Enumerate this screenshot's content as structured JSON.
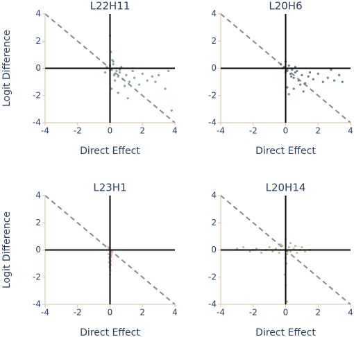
{
  "chart_data": [
    {
      "type": "scatter",
      "title": "L22H11",
      "xlabel": "Direct Effect",
      "ylabel": "Logit Difference",
      "color": "#6b9a80",
      "xlim": [
        -4,
        4
      ],
      "ylim": [
        -4,
        4
      ],
      "xticks": [
        -4,
        -2,
        0,
        2,
        4
      ],
      "yticks": [
        -4,
        -2,
        0,
        2,
        4
      ],
      "x": [
        0,
        0.1,
        0.2,
        0.3,
        0.4,
        0.5,
        0.6,
        0.8,
        1.0,
        1.2,
        1.5,
        1.8,
        2.0,
        2.3,
        2.6,
        3.0,
        3.4,
        3.8,
        0.0,
        0.05,
        0.1,
        0.2,
        0.3,
        0.5,
        0.7,
        0.9,
        1.1,
        1.4,
        0.15,
        0.25,
        -0.2,
        -0.3,
        0.4,
        0.6,
        2.8,
        3.6
      ],
      "y": [
        0.2,
        -0.1,
        0.3,
        -0.4,
        -0.2,
        -0.6,
        -0.3,
        -0.8,
        -0.5,
        -1.0,
        -0.7,
        -1.2,
        -0.4,
        -0.9,
        -0.6,
        -0.5,
        -1.5,
        -3.1,
        2.4,
        1.2,
        -1.5,
        0.5,
        -0.9,
        -1.8,
        0.1,
        -1.3,
        -2.2,
        -0.2,
        0.6,
        -0.5,
        0.1,
        -0.3,
        0.0,
        -0.1,
        -1.0,
        -0.2
      ]
    },
    {
      "type": "scatter",
      "title": "L20H6",
      "xlabel": "Direct Effect",
      "color": "#4d6a80",
      "xlim": [
        -4,
        4
      ],
      "ylim": [
        -4,
        4
      ],
      "xticks": [
        -4,
        -2,
        0,
        2,
        4
      ],
      "yticks": [
        -4,
        -2,
        0,
        2,
        4
      ],
      "x": [
        -0.3,
        -0.1,
        0.0,
        0.1,
        0.2,
        0.3,
        0.4,
        0.5,
        0.6,
        0.8,
        1.0,
        1.2,
        1.4,
        1.7,
        2.0,
        2.3,
        2.6,
        3.0,
        3.3,
        0.1,
        0.2,
        0.35,
        0.5,
        0.7,
        0.9,
        1.1,
        0.0,
        -0.2,
        0.6,
        1.5,
        2.8,
        3.5
      ],
      "y": [
        0.3,
        0.1,
        0.5,
        -0.2,
        0.2,
        -0.4,
        -0.1,
        -0.7,
        -0.3,
        -0.9,
        -0.5,
        -1.1,
        -0.6,
        -0.8,
        -0.4,
        -1.0,
        -0.7,
        -0.9,
        -0.5,
        -1.4,
        -1.9,
        -0.6,
        -1.5,
        -0.2,
        -1.2,
        -1.7,
        -0.3,
        0.0,
        0.1,
        -0.3,
        -0.1,
        -1.0
      ]
    },
    {
      "type": "scatter",
      "title": "L23H1",
      "xlabel": "Direct Effect",
      "ylabel": "Logit Difference",
      "color": "#d4a0b0",
      "xlim": [
        -4,
        4
      ],
      "ylim": [
        -4,
        4
      ],
      "xticks": [
        -4,
        -2,
        0,
        2,
        4
      ],
      "yticks": [
        -4,
        -2,
        0,
        2,
        4
      ],
      "x": [
        -0.1,
        -0.05,
        0.0,
        0.05,
        0.1,
        -0.08,
        0.02,
        0.06,
        -0.03,
        0.0,
        0.04,
        -0.06,
        0.01,
        0.03,
        -0.02,
        0.0,
        0.08,
        -0.04,
        0.02,
        0.0
      ],
      "y": [
        0.2,
        0.1,
        0.0,
        -0.1,
        -0.2,
        -0.3,
        -0.4,
        -0.5,
        -0.6,
        -0.7,
        -0.8,
        -0.9,
        -1.0,
        -1.1,
        -1.2,
        -1.3,
        -0.35,
        -0.55,
        -1.5,
        -1.8
      ]
    },
    {
      "type": "scatter",
      "title": "L20H14",
      "xlabel": "Direct Effect",
      "color": "#a8b880",
      "xlim": [
        -4,
        4
      ],
      "ylim": [
        -4,
        4
      ],
      "xticks": [
        -4,
        -2,
        0,
        2,
        4
      ],
      "yticks": [
        -4,
        -2,
        0,
        2,
        4
      ],
      "x": [
        -3.0,
        -2.6,
        -2.2,
        -1.8,
        -1.5,
        -1.2,
        -1.0,
        -0.8,
        -0.6,
        -0.4,
        -0.2,
        0.0,
        0.1,
        0.2,
        0.3,
        0.5,
        0.7,
        0.9,
        1.2,
        1.5,
        0.0,
        0.05,
        -0.05,
        0.0,
        0.1,
        0.3,
        -0.3,
        0.0,
        0.4,
        0.6,
        -2.0,
        1.0
      ],
      "y": [
        0.1,
        0.2,
        -0.1,
        0.1,
        -0.2,
        0.0,
        0.2,
        -0.1,
        0.1,
        -0.2,
        0.3,
        0.0,
        -0.3,
        0.2,
        -0.1,
        0.1,
        -0.2,
        0.0,
        -0.1,
        0.0,
        0.8,
        -1.0,
        -1.8,
        -2.6,
        -3.8,
        0.5,
        0.4,
        -0.6,
        -0.4,
        0.3,
        0.0,
        0.2
      ]
    }
  ]
}
